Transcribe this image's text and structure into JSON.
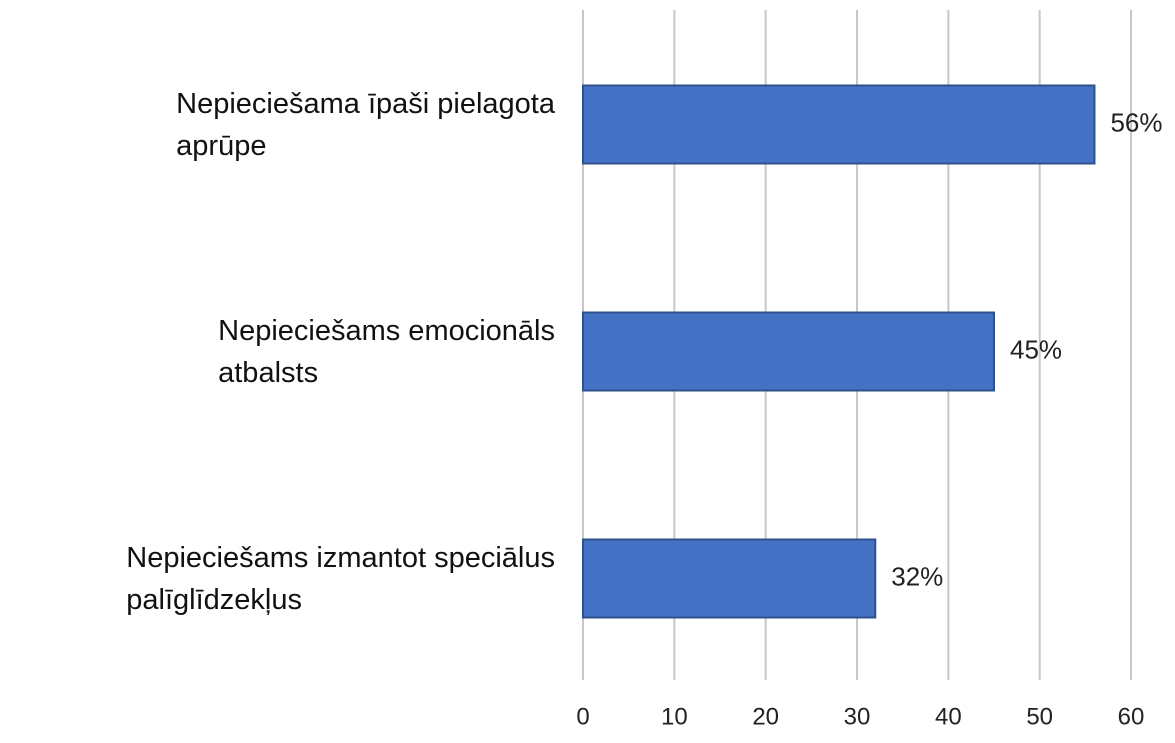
{
  "chart_data": {
    "type": "barh",
    "categories": [
      "Nepieciešama īpaši pielagota\naprūpe",
      "Nepieciešams emocionāls\natbalsts",
      "Nepieciešams izmantot speciālus\npalīglīdzekļus"
    ],
    "values": [
      56,
      45,
      32
    ],
    "value_labels": [
      "56%",
      "45%",
      "32%"
    ],
    "color": "#4472c4",
    "xlim": [
      0,
      60
    ],
    "xticks": [
      0,
      10,
      20,
      30,
      40,
      50,
      60
    ],
    "grid": true
  }
}
